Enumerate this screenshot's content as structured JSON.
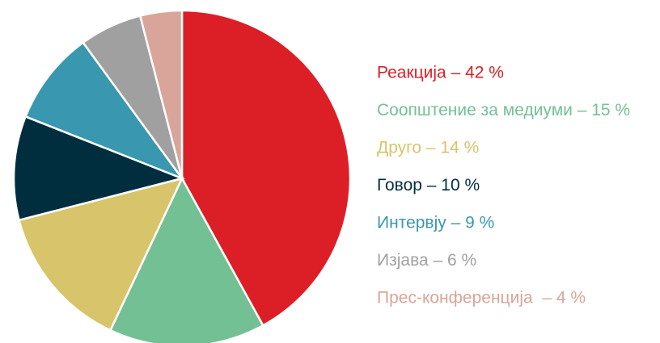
{
  "chart_data": {
    "type": "pie",
    "values": [
      42,
      15,
      14,
      10,
      9,
      6,
      4
    ],
    "value_labels": [
      "Реакција – 42 %",
      "Соопштение за медиуми – 15 %",
      "Друго – 14 %",
      "Говор – 10 %",
      "Интервју – 9 %",
      "Изјава – 6 %",
      "Прес-конференција  – 4 %"
    ],
    "colors": [
      "#dc1f26",
      "#74c095",
      "#d8c46a",
      "#012e3e",
      "#3a97b0",
      "#a0a0a0",
      "#d9a59a"
    ],
    "start_angle": 90,
    "direction": "clockwise"
  }
}
